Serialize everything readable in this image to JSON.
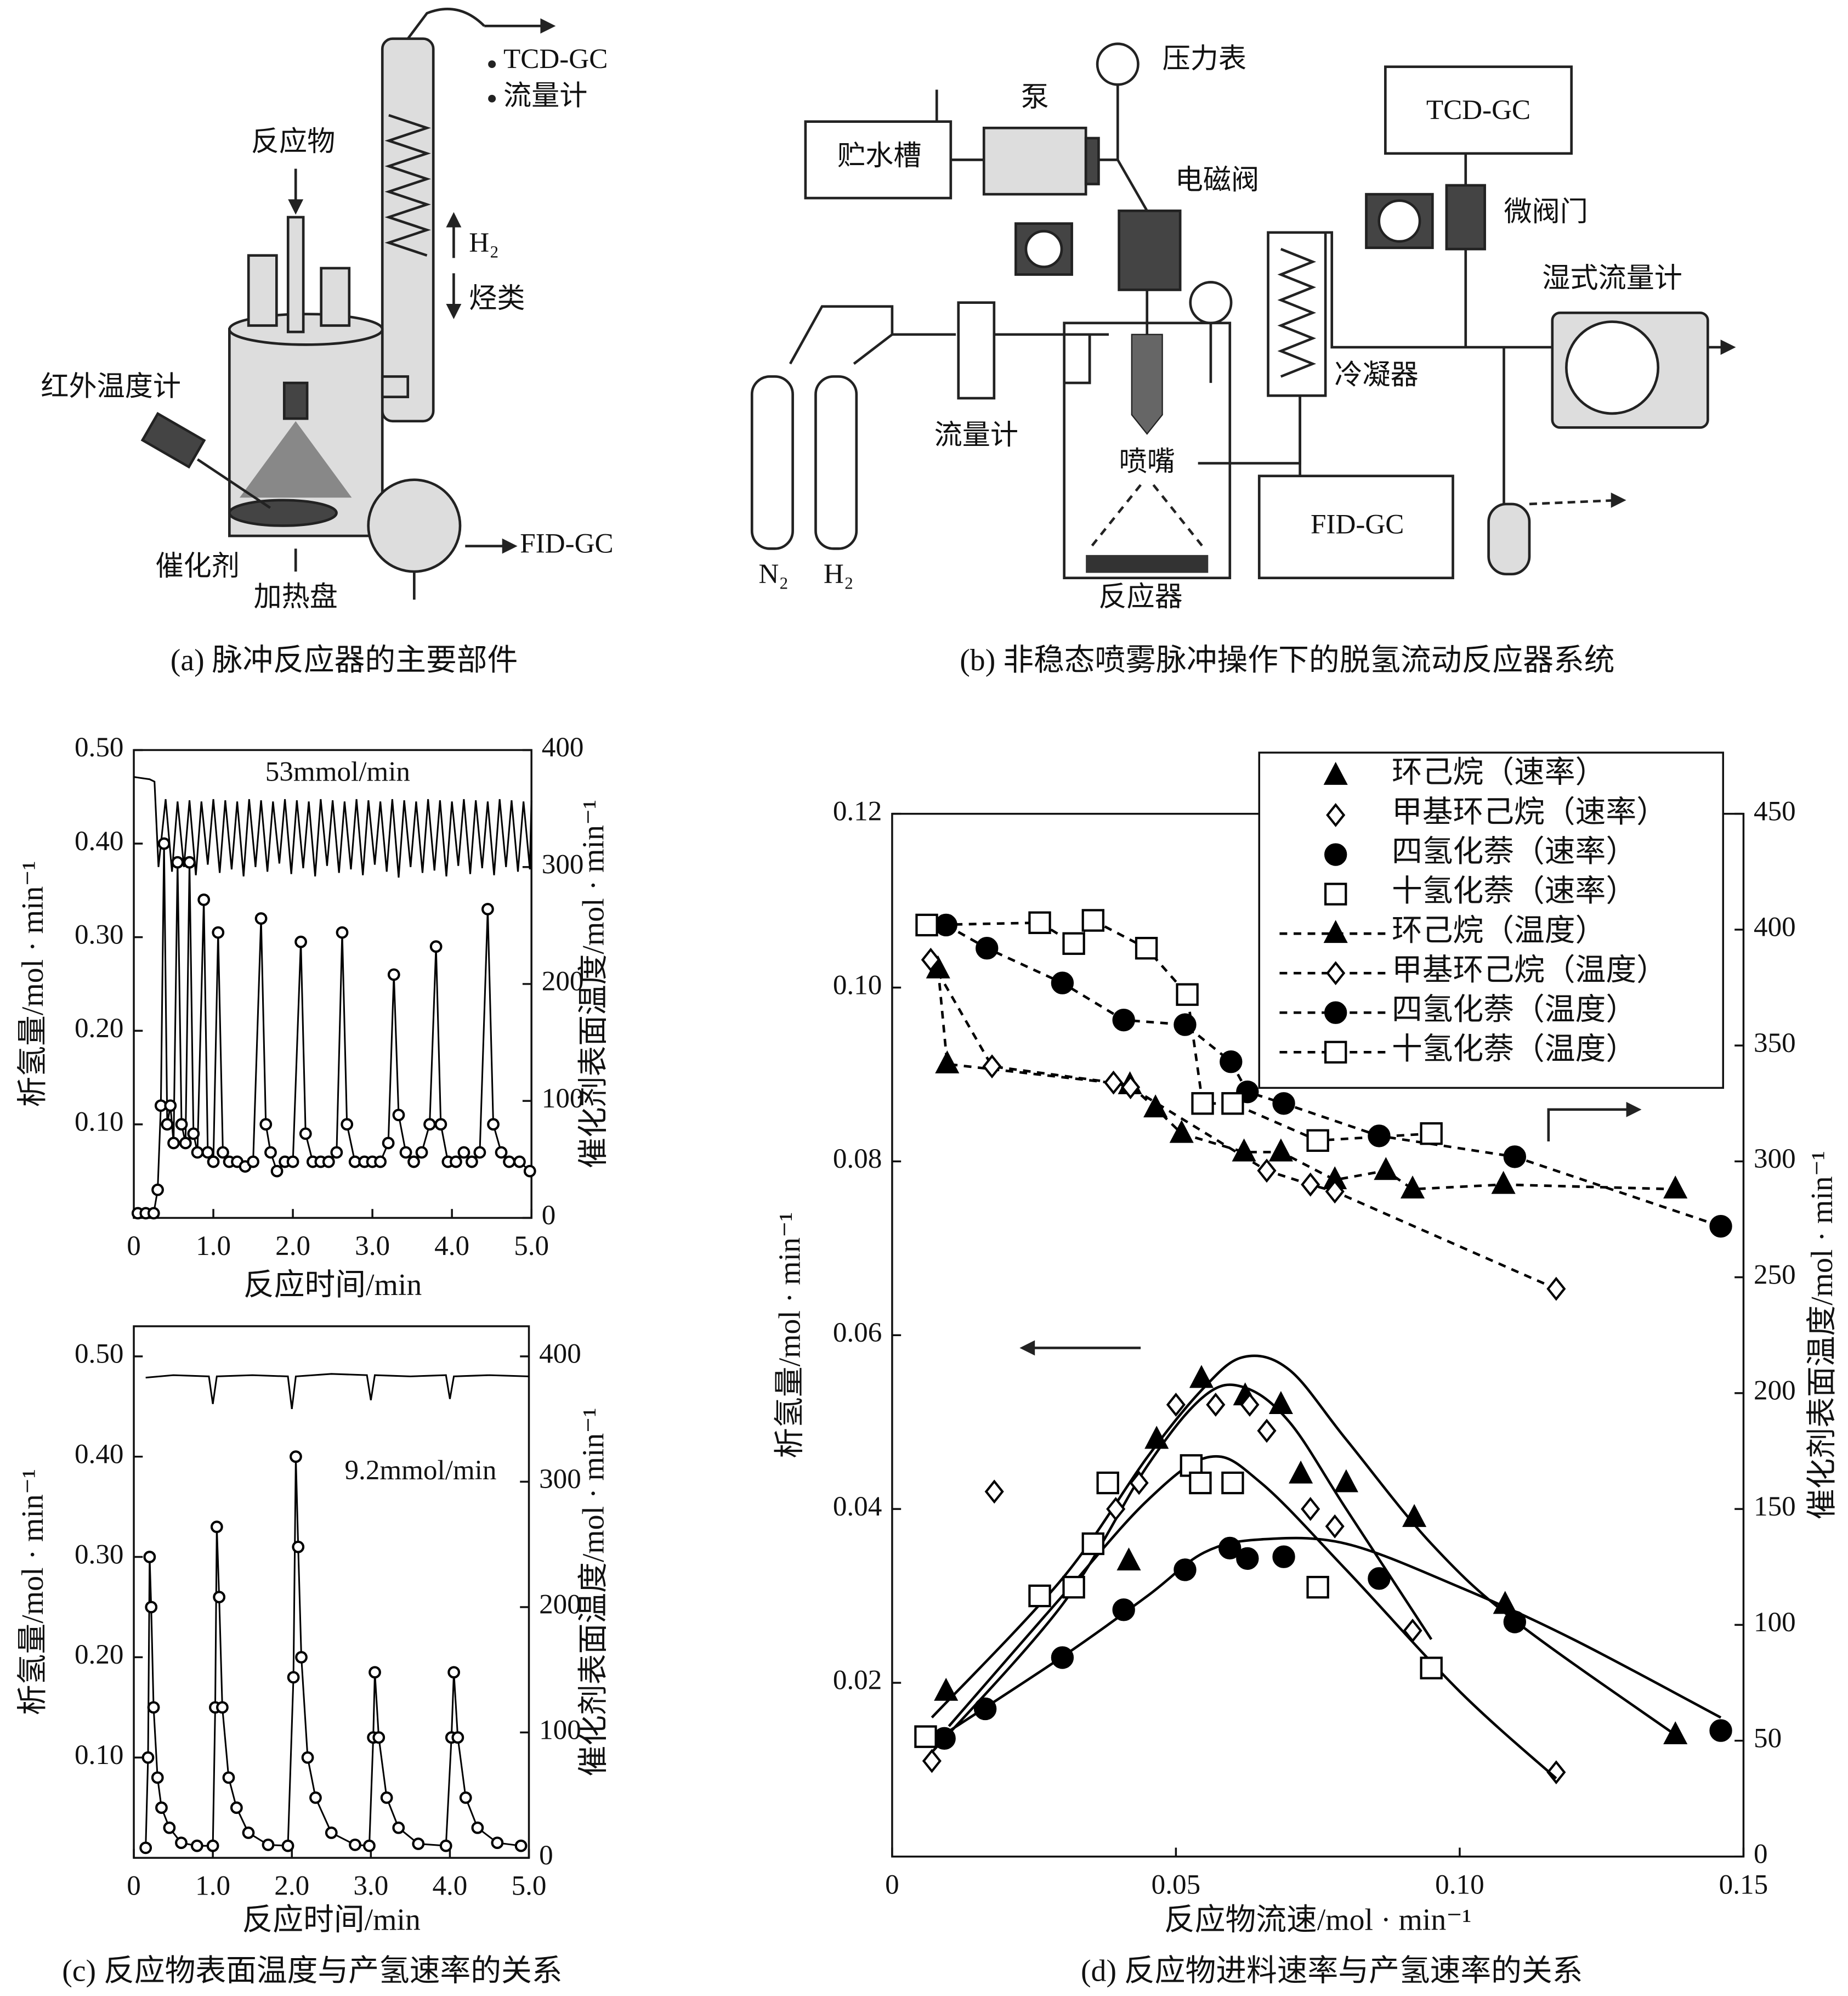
{
  "diagram_a": {
    "caption": "(a) 脉冲反应器的主要部件",
    "labels": [
      "TCD-GC",
      "流量计",
      "反应物",
      "H₂",
      "烃类",
      "红外温度计",
      "催化剂",
      "加热盘",
      "FID-GC"
    ]
  },
  "diagram_b": {
    "caption": "(b) 非稳态喷雾脉冲操作下的脱氢流动反应器系统",
    "labels": [
      "贮水槽",
      "泵",
      "压力表",
      "电磁阀",
      "TCD-GC",
      "微阀门",
      "湿式流量计",
      "流量计",
      "冷凝器",
      "喷嘴",
      "FID-GC",
      "N₂",
      "H₂",
      "反应器"
    ]
  },
  "caption_c": "(c) 反应物表面温度与产氢速率的关系",
  "caption_d": "(d) 反应物进料速率与产氢速率的关系",
  "chart_data": [
    {
      "type": "line",
      "annotation": "53mmol/min",
      "x_label": "反应时间/min",
      "y_label": "析氢量/mol · min⁻¹",
      "y2_label": "催化剂表面温度/mol · min⁻¹",
      "xlim": [
        0,
        5
      ],
      "ylim": [
        0,
        0.5
      ],
      "y2lim": [
        0,
        400
      ],
      "xticks": [
        0,
        {
          "value": 1,
          "label": "1.0"
        },
        {
          "value": 2,
          "label": "2.0"
        },
        {
          "value": 3,
          "label": "3.0"
        },
        {
          "value": 4,
          "label": "4.0"
        },
        {
          "value": 5,
          "label": "5.0"
        }
      ],
      "yticks": [
        {
          "value": 0.1,
          "label": "0.10"
        },
        {
          "value": 0.2,
          "label": "0.20"
        },
        {
          "value": 0.3,
          "label": "0.30"
        },
        {
          "value": 0.4,
          "label": "0.40"
        },
        {
          "value": 0.5,
          "label": "0.50"
        }
      ],
      "y2ticks": [
        0,
        100,
        200,
        300,
        400
      ],
      "series": [
        {
          "color": "#000000",
          "axis": "y2",
          "line": "solid",
          "marker": "none",
          "x": [
            0,
            0.2,
            0.26,
            0.31,
            0.4,
            0.48,
            0.55,
            0.63,
            0.7,
            0.78,
            0.85,
            0.93,
            1.0,
            1.08,
            1.15,
            1.23,
            1.3,
            1.38,
            1.45,
            1.53,
            1.6,
            1.68,
            1.75,
            1.83,
            1.9,
            1.98,
            2.05,
            2.13,
            2.2,
            2.28,
            2.35,
            2.43,
            2.5,
            2.58,
            2.65,
            2.73,
            2.8,
            2.88,
            2.95,
            3.03,
            3.1,
            3.18,
            3.25,
            3.33,
            3.4,
            3.48,
            3.55,
            3.63,
            3.7,
            3.78,
            3.85,
            3.93,
            4.0,
            4.08,
            4.15,
            4.23,
            4.3,
            4.38,
            4.45,
            4.53,
            4.6,
            4.68,
            4.75,
            4.83,
            4.9,
            4.98,
            5.0
          ],
          "values": [
            377,
            375,
            373,
            300,
            358,
            296,
            356,
            300,
            357,
            293,
            356,
            302,
            358,
            295,
            357,
            298,
            356,
            292,
            358,
            300,
            357,
            296,
            356,
            303,
            358,
            294,
            357,
            299,
            356,
            292,
            358,
            301,
            357,
            295,
            356,
            298,
            358,
            293,
            357,
            302,
            356,
            296,
            358,
            291,
            357,
            300,
            356,
            295,
            358,
            297,
            357,
            292,
            356,
            301,
            358,
            294,
            357,
            299,
            356,
            293,
            358,
            300,
            357,
            296,
            356,
            298,
            357
          ]
        },
        {
          "color": "#000000",
          "axis": "y",
          "line": "solid",
          "marker": "circle",
          "filled": false,
          "x": [
            0.05,
            0.15,
            0.25,
            0.3,
            0.34,
            0.38,
            0.42,
            0.46,
            0.5,
            0.55,
            0.6,
            0.65,
            0.7,
            0.75,
            0.8,
            0.88,
            0.93,
            1.0,
            1.06,
            1.12,
            1.2,
            1.3,
            1.4,
            1.5,
            1.6,
            1.66,
            1.72,
            1.8,
            1.9,
            2.0,
            2.1,
            2.16,
            2.25,
            2.35,
            2.45,
            2.55,
            2.62,
            2.68,
            2.78,
            2.9,
            3.0,
            3.1,
            3.2,
            3.27,
            3.33,
            3.42,
            3.52,
            3.62,
            3.72,
            3.8,
            3.86,
            3.95,
            4.05,
            4.15,
            4.25,
            4.35,
            4.45,
            4.52,
            4.62,
            4.72,
            4.85,
            4.98
          ],
          "values": [
            0.005,
            0.005,
            0.005,
            0.03,
            0.12,
            0.4,
            0.1,
            0.12,
            0.08,
            0.38,
            0.1,
            0.08,
            0.38,
            0.09,
            0.07,
            0.34,
            0.07,
            0.06,
            0.305,
            0.07,
            0.06,
            0.06,
            0.055,
            0.06,
            0.32,
            0.1,
            0.07,
            0.05,
            0.06,
            0.06,
            0.295,
            0.09,
            0.06,
            0.06,
            0.06,
            0.07,
            0.305,
            0.1,
            0.06,
            0.06,
            0.06,
            0.06,
            0.08,
            0.26,
            0.11,
            0.07,
            0.06,
            0.07,
            0.1,
            0.29,
            0.1,
            0.06,
            0.06,
            0.07,
            0.06,
            0.07,
            0.33,
            0.1,
            0.07,
            0.06,
            0.06,
            0.05
          ]
        }
      ]
    },
    {
      "type": "line",
      "annotation": "9.2mmol/min",
      "x_label": "反应时间/min",
      "y_label": "析氢量/mol · min⁻¹",
      "y2_label": "催化剂表面温度/mol · min⁻¹",
      "xlim": [
        0,
        5
      ],
      "ylim": [
        0,
        0.53
      ],
      "y2lim": [
        0,
        424
      ],
      "xticks": [
        0,
        {
          "value": 1,
          "label": "1.0"
        },
        {
          "value": 2,
          "label": "2.0"
        },
        {
          "value": 3,
          "label": "3.0"
        },
        {
          "value": 4,
          "label": "4.0"
        },
        {
          "value": 5,
          "label": "5.0"
        }
      ],
      "yticks": [
        {
          "value": 0.1,
          "label": "0.10"
        },
        {
          "value": 0.2,
          "label": "0.20"
        },
        {
          "value": 0.3,
          "label": "0.30"
        },
        {
          "value": 0.4,
          "label": "0.40"
        },
        {
          "value": 0.5,
          "label": "0.50"
        }
      ],
      "y2ticks": [
        0,
        100,
        200,
        300,
        400
      ],
      "series": [
        {
          "color": "#000000",
          "axis": "y2",
          "line": "solid",
          "marker": "none",
          "x": [
            0.15,
            0.5,
            0.95,
            1.0,
            1.05,
            1.5,
            1.95,
            2.0,
            2.05,
            2.5,
            2.95,
            3.0,
            3.05,
            3.5,
            3.95,
            4.0,
            4.05,
            4.5,
            5.0
          ],
          "values": [
            383,
            385,
            384,
            362,
            384,
            385,
            384,
            358,
            384,
            386,
            385,
            365,
            385,
            384,
            385,
            366,
            384,
            385,
            384
          ]
        },
        {
          "color": "#000000",
          "axis": "y",
          "line": "solid",
          "marker": "circle",
          "filled": false,
          "x": [
            0.15,
            0.18,
            0.2,
            0.22,
            0.25,
            0.3,
            0.35,
            0.45,
            0.6,
            0.8,
            1.0,
            1.03,
            1.05,
            1.08,
            1.12,
            1.2,
            1.3,
            1.45,
            1.7,
            1.95,
            2.02,
            2.05,
            2.08,
            2.12,
            2.2,
            2.3,
            2.5,
            2.8,
            2.98,
            3.03,
            3.05,
            3.1,
            3.2,
            3.35,
            3.6,
            3.95,
            4.02,
            4.05,
            4.1,
            4.2,
            4.35,
            4.6,
            4.9
          ],
          "values": [
            0.01,
            0.1,
            0.3,
            0.25,
            0.15,
            0.08,
            0.05,
            0.03,
            0.015,
            0.012,
            0.012,
            0.15,
            0.33,
            0.26,
            0.15,
            0.08,
            0.05,
            0.025,
            0.013,
            0.012,
            0.18,
            0.4,
            0.31,
            0.2,
            0.1,
            0.06,
            0.025,
            0.013,
            0.012,
            0.12,
            0.185,
            0.12,
            0.06,
            0.03,
            0.014,
            0.012,
            0.12,
            0.185,
            0.12,
            0.06,
            0.03,
            0.015,
            0.012
          ]
        }
      ]
    },
    {
      "type": "scatter",
      "x_label": "反应物流速/mol · min⁻¹",
      "y_label": "析氢量/mol · min⁻¹",
      "y2_label": "催化剂表面温度/mol · min⁻¹",
      "xlim": [
        0,
        0.15
      ],
      "ylim": [
        0,
        0.12
      ],
      "y2lim": [
        0,
        450
      ],
      "xticks": [
        0,
        0.05,
        {
          "value": 0.1,
          "label": "0.10"
        },
        0.15
      ],
      "yticks": [
        0.02,
        0.04,
        0.06,
        0.08,
        {
          "value": 0.1,
          "label": "0.10"
        },
        0.12
      ],
      "y2ticks": [
        0,
        50,
        100,
        150,
        200,
        250,
        300,
        350,
        400,
        450
      ],
      "legend": "top-right",
      "series": [
        {
          "name": "环己烷（速率）",
          "color": "#000000",
          "axis": "y",
          "line": "none",
          "marker": "triangle",
          "filled": true,
          "x": [
            0.0095,
            0.0417,
            0.0466,
            0.0545,
            0.0622,
            0.0685,
            0.072,
            0.08,
            0.092,
            0.108,
            0.138
          ],
          "values": [
            0.019,
            0.034,
            0.048,
            0.055,
            0.053,
            0.052,
            0.044,
            0.043,
            0.039,
            0.029,
            0.014
          ],
          "fit": {
            "x": [
              0.007,
              0.03,
              0.045,
              0.055,
              0.062,
              0.07,
              0.08,
              0.095,
              0.11,
              0.138
            ],
            "values": [
              0.016,
              0.032,
              0.046,
              0.054,
              0.0575,
              0.056,
              0.048,
              0.036,
              0.027,
              0.014
            ]
          }
        },
        {
          "name": "甲基环己烷（速率）",
          "color": "#000000",
          "axis": "y",
          "line": "none",
          "marker": "diamond",
          "filled": false,
          "x": [
            0.007,
            0.018,
            0.0394,
            0.0435,
            0.05,
            0.057,
            0.063,
            0.066,
            0.0737,
            0.078,
            0.0917,
            0.117
          ],
          "values": [
            0.011,
            0.042,
            0.04,
            0.043,
            0.052,
            0.052,
            0.052,
            0.049,
            0.04,
            0.038,
            0.026,
            0.0097
          ],
          "fit": {
            "x": [
              0.007,
              0.03,
              0.045,
              0.055,
              0.062,
              0.07,
              0.08,
              0.095
            ],
            "values": [
              0.012,
              0.029,
              0.045,
              0.053,
              0.054,
              0.05,
              0.04,
              0.025
            ]
          }
        },
        {
          "name": "四氢化萘（速率）",
          "color": "#000000",
          "axis": "y",
          "line": "none",
          "marker": "circle",
          "filled": true,
          "x": [
            0.0092,
            0.0164,
            0.03,
            0.0408,
            0.0516,
            0.0595,
            0.0626,
            0.069,
            0.0858,
            0.1097,
            0.146
          ],
          "values": [
            0.0136,
            0.017,
            0.0229,
            0.0284,
            0.033,
            0.0355,
            0.0343,
            0.0345,
            0.032,
            0.027,
            0.0145
          ],
          "fit": {
            "x": [
              0.009,
              0.03,
              0.045,
              0.055,
              0.065,
              0.08,
              0.1,
              0.12,
              0.146
            ],
            "values": [
              0.014,
              0.023,
              0.03,
              0.035,
              0.0365,
              0.036,
              0.031,
              0.025,
              0.016
            ]
          }
        },
        {
          "name": "十氢化萘（速率）",
          "color": "#000000",
          "axis": "y",
          "line": "none",
          "marker": "square",
          "filled": false,
          "x": [
            0.0059,
            0.026,
            0.032,
            0.0354,
            0.038,
            0.0527,
            0.0543,
            0.06,
            0.075,
            0.095
          ],
          "values": [
            0.0138,
            0.03,
            0.031,
            0.036,
            0.043,
            0.045,
            0.043,
            0.043,
            0.031,
            0.0217
          ],
          "fit": {
            "x": [
              0.01,
              0.03,
              0.045,
              0.056,
              0.065,
              0.08,
              0.1,
              0.117
            ],
            "values": [
              0.015,
              0.03,
              0.041,
              0.046,
              0.043,
              0.033,
              0.019,
              0.009
            ]
          }
        },
        {
          "name": "环己烷（温度）",
          "color": "#000000",
          "axis": "y2",
          "line": "dashed",
          "marker": "triangle",
          "filled": true,
          "x": [
            0.0081,
            0.0097,
            0.0419,
            0.0464,
            0.051,
            0.062,
            0.0685,
            0.078,
            0.087,
            0.0917,
            0.1077,
            0.138
          ],
          "values": [
            383,
            342,
            333,
            323,
            312,
            304,
            304,
            292,
            296,
            288,
            290,
            288
          ]
        },
        {
          "name": "甲基环己烷（温度）",
          "color": "#000000",
          "axis": "y2",
          "line": "dashed",
          "marker": "diamond",
          "filled": false,
          "x": [
            0.0068,
            0.0176,
            0.039,
            0.042,
            0.066,
            0.0737,
            0.078,
            0.117
          ],
          "values": [
            387,
            341,
            334,
            332,
            296,
            290,
            287,
            245
          ]
        },
        {
          "name": "四氢化萘（温度）",
          "color": "#000000",
          "axis": "y2",
          "line": "dashed",
          "marker": "circle",
          "filled": true,
          "x": [
            0.0095,
            0.0167,
            0.03,
            0.0408,
            0.0516,
            0.0597,
            0.0626,
            0.069,
            0.0858,
            0.1097,
            0.146
          ],
          "values": [
            402,
            392,
            377,
            361,
            359,
            343,
            330,
            325,
            311,
            302,
            272
          ]
        },
        {
          "name": "十氢化萘（温度）",
          "color": "#000000",
          "axis": "y2",
          "line": "dashed",
          "marker": "square",
          "filled": false,
          "x": [
            0.0061,
            0.026,
            0.032,
            0.0354,
            0.0448,
            0.052,
            0.0547,
            0.06,
            0.075,
            0.095
          ],
          "values": [
            402,
            403,
            394,
            404,
            392,
            372,
            325,
            325,
            309,
            312
          ]
        }
      ]
    }
  ]
}
